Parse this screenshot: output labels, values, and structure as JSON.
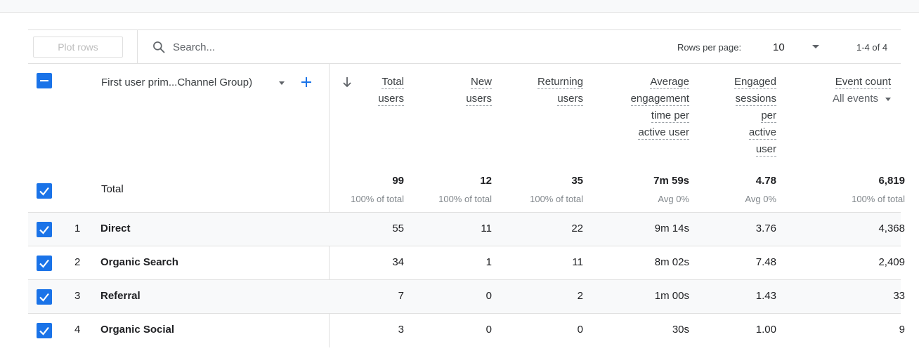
{
  "toolbar": {
    "plot_rows_label": "Plot rows",
    "search_placeholder": "Search...",
    "rows_per_page_label": "Rows per page:",
    "rows_per_page_value": "10",
    "pagination": "1-4 of 4"
  },
  "header": {
    "dimension_label": "First user prim...Channel Group)",
    "metrics": [
      {
        "lines": [
          "Total",
          "users"
        ]
      },
      {
        "lines": [
          "New",
          "users"
        ]
      },
      {
        "lines": [
          "Returning",
          "users"
        ]
      },
      {
        "lines": [
          "Average",
          "engagement",
          "time per",
          "active user"
        ]
      },
      {
        "lines": [
          "Engaged",
          "sessions",
          "per",
          "active",
          "user"
        ]
      },
      {
        "lines": [
          "Event count"
        ],
        "sub": "All events"
      }
    ]
  },
  "total": {
    "label": "Total",
    "values": [
      "99",
      "12",
      "35",
      "7m 59s",
      "4.78",
      "6,819"
    ],
    "subs": [
      "100% of total",
      "100% of total",
      "100% of total",
      "Avg 0%",
      "Avg 0%",
      "100% of total"
    ]
  },
  "rows": [
    {
      "num": "1",
      "name": "Direct",
      "values": [
        "55",
        "11",
        "22",
        "9m 14s",
        "3.76",
        "4,368"
      ]
    },
    {
      "num": "2",
      "name": "Organic Search",
      "values": [
        "34",
        "1",
        "11",
        "8m 02s",
        "7.48",
        "2,409"
      ]
    },
    {
      "num": "3",
      "name": "Referral",
      "values": [
        "7",
        "0",
        "2",
        "1m 00s",
        "1.43",
        "33"
      ]
    },
    {
      "num": "4",
      "name": "Organic Social",
      "values": [
        "3",
        "0",
        "0",
        "30s",
        "1.00",
        "9"
      ]
    }
  ],
  "colors": {
    "accent": "#1a73e8",
    "divider": "#e0e0e0",
    "shaded_row": "#f8f9fa"
  }
}
